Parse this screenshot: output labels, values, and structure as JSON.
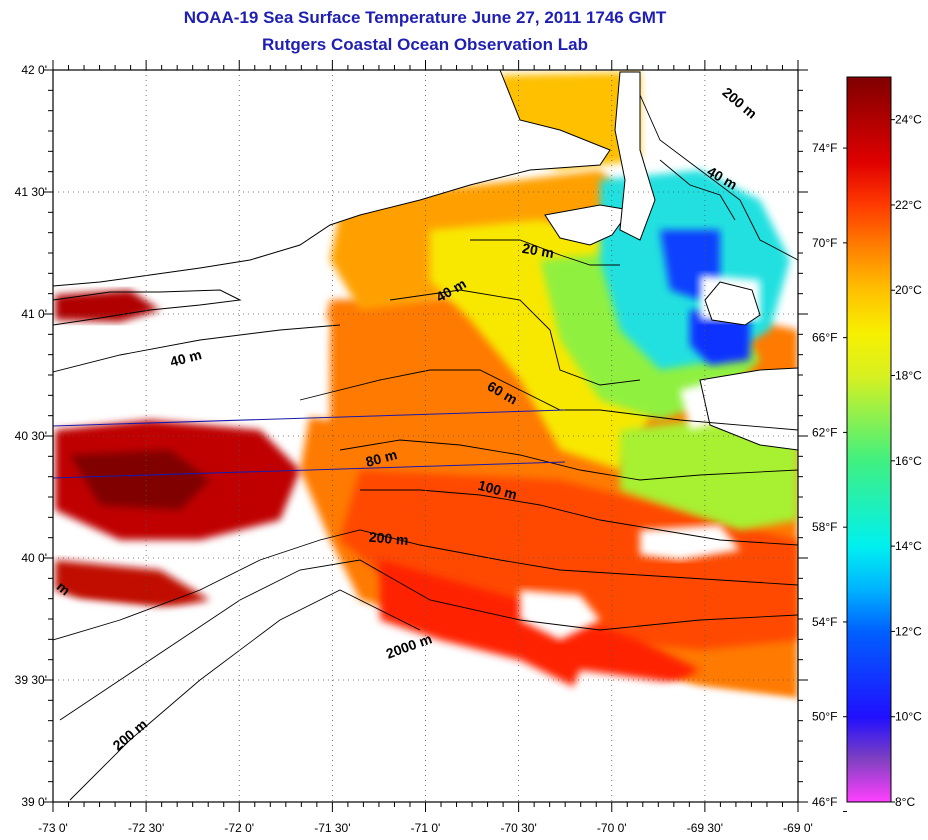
{
  "title_line1": "NOAA-19 Sea Surface Temperature June 27, 2011 1746 GMT",
  "title_line2": "Rutgers Coastal Ocean Observation Lab",
  "lat_ticks": [
    {
      "value": 42.0,
      "label": "42 0'"
    },
    {
      "value": 41.5,
      "label": "41 30'"
    },
    {
      "value": 41.0,
      "label": "41 0'"
    },
    {
      "value": 40.5,
      "label": "40 30'"
    },
    {
      "value": 40.0,
      "label": "40 0'"
    },
    {
      "value": 39.5,
      "label": "39 30'"
    },
    {
      "value": 39.0,
      "label": "39 0'"
    }
  ],
  "lon_ticks": [
    {
      "value": -73.0,
      "label": "-73 0'"
    },
    {
      "value": -72.5,
      "label": "-72 30'"
    },
    {
      "value": -72.0,
      "label": "-72 0'"
    },
    {
      "value": -71.5,
      "label": "-71 30'"
    },
    {
      "value": -71.0,
      "label": "-71 0'"
    },
    {
      "value": -70.5,
      "label": "-70 30'"
    },
    {
      "value": -70.0,
      "label": "-70 0'"
    },
    {
      "value": -69.5,
      "label": "-69 30'"
    },
    {
      "value": -69.0,
      "label": "-69 0'"
    }
  ],
  "extent": {
    "lon_min": -73.0,
    "lon_max": -69.0,
    "lat_min": 39.0,
    "lat_max": 42.0
  },
  "colorbar": {
    "celsius_min": 8,
    "celsius_max": 25,
    "celsius_labels": [
      {
        "value": 24,
        "label": "24°C"
      },
      {
        "value": 22,
        "label": "22°C"
      },
      {
        "value": 20,
        "label": "20°C"
      },
      {
        "value": 18,
        "label": "18°C"
      },
      {
        "value": 16,
        "label": "16°C"
      },
      {
        "value": 14,
        "label": "14°C"
      },
      {
        "value": 12,
        "label": "12°C"
      },
      {
        "value": 10,
        "label": "10°C"
      },
      {
        "value": 8,
        "label": "8°C"
      }
    ],
    "fahrenheit_labels": [
      {
        "value": 74,
        "label": "74°F"
      },
      {
        "value": 70,
        "label": "70°F"
      },
      {
        "value": 66,
        "label": "66°F"
      },
      {
        "value": 62,
        "label": "62°F"
      },
      {
        "value": 58,
        "label": "58°F"
      },
      {
        "value": 54,
        "label": "54°F"
      },
      {
        "value": 50,
        "label": "50°F"
      },
      {
        "value": 46,
        "label": "46°F"
      }
    ],
    "stops": [
      {
        "c": 8,
        "color": "#ff40ff"
      },
      {
        "c": 9,
        "color": "#8040c0"
      },
      {
        "c": 10,
        "color": "#2010ff"
      },
      {
        "c": 12,
        "color": "#0060ff"
      },
      {
        "c": 13,
        "color": "#00b4ff"
      },
      {
        "c": 14,
        "color": "#00f0f0"
      },
      {
        "c": 16,
        "color": "#40f080"
      },
      {
        "c": 18,
        "color": "#d8f020"
      },
      {
        "c": 19,
        "color": "#f8f000"
      },
      {
        "c": 20,
        "color": "#ffc000"
      },
      {
        "c": 21,
        "color": "#ff8000"
      },
      {
        "c": 22,
        "color": "#ff3a00"
      },
      {
        "c": 23,
        "color": "#e00000"
      },
      {
        "c": 24,
        "color": "#b00000"
      },
      {
        "c": 25,
        "color": "#800000"
      }
    ]
  },
  "contour_labels": [
    {
      "text": "200 m",
      "lon": -69.33,
      "lat": 41.85,
      "rot": 40
    },
    {
      "text": "40 m",
      "lon": -69.42,
      "lat": 41.54,
      "rot": 30
    },
    {
      "text": "20 m",
      "lon": -70.4,
      "lat": 41.24,
      "rot": 10
    },
    {
      "text": "40 m",
      "lon": -70.85,
      "lat": 41.08,
      "rot": -30
    },
    {
      "text": "40 m",
      "lon": -72.28,
      "lat": 40.8,
      "rot": -15
    },
    {
      "text": "60 m",
      "lon": -70.6,
      "lat": 40.66,
      "rot": 30
    },
    {
      "text": "80 m",
      "lon": -71.23,
      "lat": 40.39,
      "rot": -15
    },
    {
      "text": "100 m",
      "lon": -70.62,
      "lat": 40.26,
      "rot": 15
    },
    {
      "text": "200 m",
      "lon": -71.2,
      "lat": 40.06,
      "rot": 5
    },
    {
      "text": "2000 m",
      "lon": -71.08,
      "lat": 39.62,
      "rot": -20
    },
    {
      "text": "200 m",
      "lon": -72.57,
      "lat": 39.26,
      "rot": -40
    },
    {
      "text": "m",
      "lon": -72.96,
      "lat": 39.86,
      "rot": 40
    }
  ]
}
